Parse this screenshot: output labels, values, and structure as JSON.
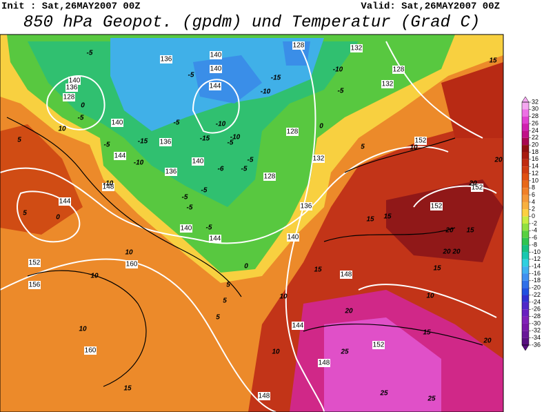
{
  "header": {
    "init": "Init : Sat,26MAY2007 00Z",
    "valid": "Valid: Sat,26MAY2007 00Z",
    "title": "850 hPa Geopot. (gpdm) und Temperatur (Grad C)"
  },
  "colorbar": {
    "ticks": [
      32,
      30,
      28,
      26,
      24,
      22,
      20,
      18,
      16,
      14,
      12,
      10,
      8,
      6,
      4,
      2,
      0,
      -2,
      -4,
      -6,
      -8,
      -10,
      -12,
      -14,
      -16,
      -18,
      -20,
      -22,
      -24,
      -26,
      -28,
      -30,
      -32,
      -34,
      -36
    ],
    "colors": [
      "#f4a8f0",
      "#ec70e4",
      "#e040d0",
      "#d020b0",
      "#c01088",
      "#a80850",
      "#901010",
      "#a81c10",
      "#c02c10",
      "#d03c10",
      "#e05010",
      "#e86818",
      "#f08028",
      "#f49838",
      "#f8b040",
      "#fcd040",
      "#c8ec40",
      "#90e040",
      "#58d040",
      "#30c450",
      "#18c080",
      "#18c8b0",
      "#30d0e0",
      "#40b0f0",
      "#4090f0",
      "#3070e8",
      "#2050e0",
      "#3030d0",
      "#5028c8",
      "#6820c0",
      "#8020b8",
      "#7818a8",
      "#681898",
      "#581080"
    ]
  },
  "map": {
    "labels": [
      {
        "text": "140",
        "kind": "geo"
      },
      {
        "text": "136",
        "kind": "geo"
      },
      {
        "text": "140",
        "kind": "geo"
      },
      {
        "text": "144",
        "kind": "geo"
      },
      {
        "text": "128",
        "kind": "geo"
      },
      {
        "text": "132",
        "kind": "geo"
      },
      {
        "text": "128",
        "kind": "geo"
      },
      {
        "text": "132",
        "kind": "geo"
      },
      {
        "text": "140",
        "kind": "geo"
      },
      {
        "text": "136",
        "kind": "geo"
      },
      {
        "text": "128",
        "kind": "geo"
      },
      {
        "text": "140",
        "kind": "geo"
      },
      {
        "text": "136",
        "kind": "geo"
      },
      {
        "text": "144",
        "kind": "geo"
      },
      {
        "text": "140",
        "kind": "geo"
      },
      {
        "text": "136",
        "kind": "geo"
      },
      {
        "text": "128",
        "kind": "geo"
      },
      {
        "text": "128",
        "kind": "geo"
      },
      {
        "text": "132",
        "kind": "geo"
      },
      {
        "text": "152",
        "kind": "geo"
      },
      {
        "text": "152",
        "kind": "geo"
      },
      {
        "text": "152",
        "kind": "geo"
      },
      {
        "text": "136",
        "kind": "geo"
      },
      {
        "text": "140",
        "kind": "geo"
      },
      {
        "text": "144",
        "kind": "geo"
      },
      {
        "text": "140",
        "kind": "geo"
      },
      {
        "text": "148",
        "kind": "geo"
      },
      {
        "text": "144",
        "kind": "geo"
      },
      {
        "text": "160",
        "kind": "geo"
      },
      {
        "text": "152",
        "kind": "geo"
      },
      {
        "text": "156",
        "kind": "geo"
      },
      {
        "text": "148",
        "kind": "geo"
      },
      {
        "text": "144",
        "kind": "geo"
      },
      {
        "text": "152",
        "kind": "geo"
      },
      {
        "text": "160",
        "kind": "geo"
      },
      {
        "text": "148",
        "kind": "geo"
      },
      {
        "text": "148",
        "kind": "geo"
      },
      {
        "text": "-5",
        "kind": "t"
      },
      {
        "text": "-5",
        "kind": "t"
      },
      {
        "text": "-10",
        "kind": "t"
      },
      {
        "text": "-15",
        "kind": "t"
      },
      {
        "text": "-10",
        "kind": "t"
      },
      {
        "text": "-5",
        "kind": "t"
      },
      {
        "text": "15",
        "kind": "t"
      },
      {
        "text": "0",
        "kind": "t"
      },
      {
        "text": "-5",
        "kind": "t"
      },
      {
        "text": "10",
        "kind": "t"
      },
      {
        "text": "5",
        "kind": "t"
      },
      {
        "text": "-5",
        "kind": "t"
      },
      {
        "text": "-10",
        "kind": "t"
      },
      {
        "text": "-15",
        "kind": "t"
      },
      {
        "text": "-10",
        "kind": "t"
      },
      {
        "text": "-10",
        "kind": "t"
      },
      {
        "text": "-15",
        "kind": "t"
      },
      {
        "text": "-5",
        "kind": "t"
      },
      {
        "text": "-6",
        "kind": "t"
      },
      {
        "text": "-5",
        "kind": "t"
      },
      {
        "text": "-5",
        "kind": "t"
      },
      {
        "text": "0",
        "kind": "t"
      },
      {
        "text": "5",
        "kind": "t"
      },
      {
        "text": "10",
        "kind": "t"
      },
      {
        "text": "20",
        "kind": "t"
      },
      {
        "text": "20",
        "kind": "t"
      },
      {
        "text": "15",
        "kind": "t"
      },
      {
        "text": "15",
        "kind": "t"
      },
      {
        "text": "20",
        "kind": "t"
      },
      {
        "text": "15",
        "kind": "t"
      },
      {
        "text": "20",
        "kind": "t"
      },
      {
        "text": "20",
        "kind": "t"
      },
      {
        "text": "15",
        "kind": "t"
      },
      {
        "text": "10",
        "kind": "t"
      },
      {
        "text": "15",
        "kind": "t"
      },
      {
        "text": "-5",
        "kind": "t"
      },
      {
        "text": "-5",
        "kind": "t"
      },
      {
        "text": "-5",
        "kind": "t"
      },
      {
        "text": "-5",
        "kind": "t"
      },
      {
        "text": "0",
        "kind": "t"
      },
      {
        "text": "5",
        "kind": "t"
      },
      {
        "text": "0",
        "kind": "t"
      },
      {
        "text": "5",
        "kind": "t"
      },
      {
        "text": "5",
        "kind": "t"
      },
      {
        "text": "5",
        "kind": "t"
      },
      {
        "text": "10",
        "kind": "t"
      },
      {
        "text": "10",
        "kind": "t"
      },
      {
        "text": "10",
        "kind": "t"
      },
      {
        "text": "10",
        "kind": "t"
      },
      {
        "text": "10",
        "kind": "t"
      },
      {
        "text": "20",
        "kind": "t"
      },
      {
        "text": "25",
        "kind": "t"
      },
      {
        "text": "15",
        "kind": "t"
      },
      {
        "text": "20",
        "kind": "t"
      },
      {
        "text": "15",
        "kind": "t"
      },
      {
        "text": "25",
        "kind": "t"
      },
      {
        "text": "25",
        "kind": "t"
      },
      {
        "text": "-5",
        "kind": "t"
      },
      {
        "text": "-10",
        "kind": "t"
      }
    ]
  }
}
